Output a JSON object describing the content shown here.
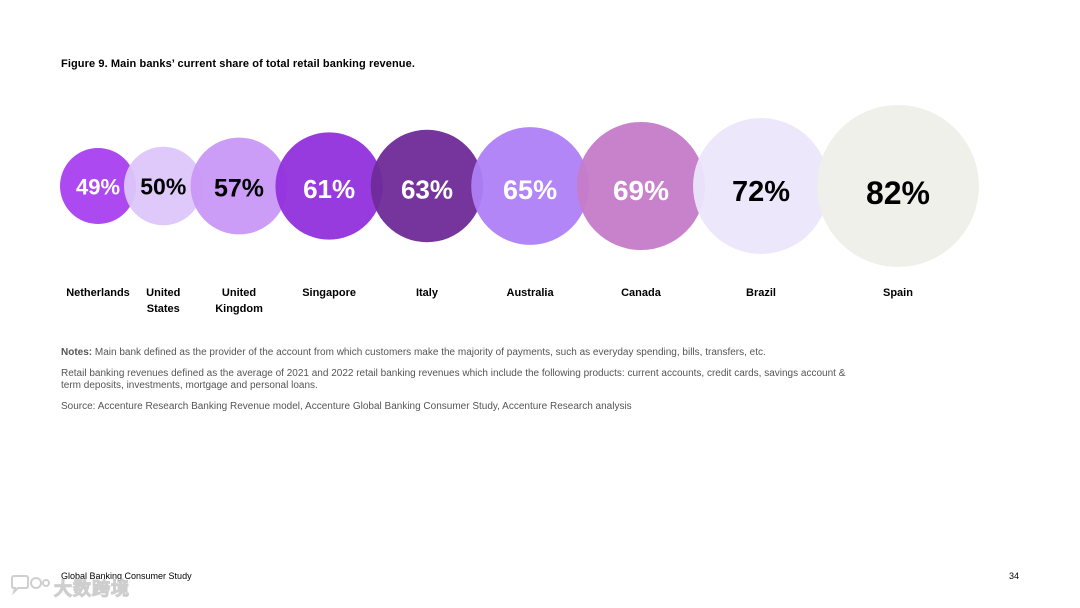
{
  "figure_title": "Figure 9. Main banks’ current share of total retail banking revenue.",
  "chart_data": {
    "type": "bubble",
    "title": "Figure 9. Main banks’ current share of total retail banking revenue.",
    "categories": [
      [
        "Netherlands"
      ],
      [
        "United",
        "States"
      ],
      [
        "United",
        "Kingdom"
      ],
      [
        "Singapore"
      ],
      [
        "Italy"
      ],
      [
        "Australia"
      ],
      [
        "Canada"
      ],
      [
        "Brazil"
      ],
      [
        "Spain"
      ]
    ],
    "values": [
      49,
      50,
      57,
      61,
      63,
      65,
      69,
      72,
      82
    ],
    "labels": [
      "49%",
      "50%",
      "57%",
      "61%",
      "63%",
      "65%",
      "69%",
      "72%",
      "82%"
    ],
    "colors": [
      "#a93ff0",
      "#dcc6fa",
      "#c898f5",
      "#9130dc",
      "#6e2a98",
      "#ae7ff7",
      "#c57bc8",
      "#ebe6fb",
      "#efefea"
    ],
    "label_colors": [
      "#ffffff",
      "#000000",
      "#000000",
      "#ffffff",
      "#ffffff",
      "#ffffff",
      "#ffffff",
      "#000000",
      "#000000"
    ],
    "grid": false
  },
  "notes": {
    "notes_lead": "Notes:",
    "notes_text": " Main bank defined as the provider of the account from which customers make the majority of payments, such as everyday spending, bills, transfers, etc.",
    "revenue_def": "Retail banking revenues defined as the average of 2021 and 2022 retail banking revenues which include the following products: current accounts, credit cards, savings account & term deposits, investments, mortgage and personal loans.",
    "source": "Source: Accenture Research Banking Revenue model, Accenture Global Banking Consumer Study, Accenture Research analysis"
  },
  "footer": {
    "left": "Global Banking Consumer Study",
    "page_number": "34"
  },
  "watermark": {
    "text": "大数跨境",
    "icon": "chat-bubble-icon"
  }
}
